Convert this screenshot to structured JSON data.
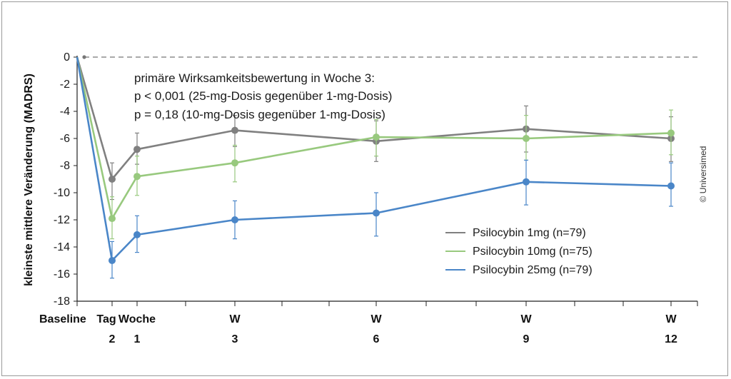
{
  "chart_data": {
    "type": "line",
    "title": "",
    "ylabel": "kleinste mittlere Veränderung (MADRS)",
    "ylim": [
      -18,
      0
    ],
    "yticks": [
      0,
      -2,
      -4,
      -6,
      -8,
      -10,
      -12,
      -14,
      -16,
      -18
    ],
    "x": [
      0,
      2,
      7,
      21,
      42,
      63,
      84
    ],
    "x_tick_labels": [
      {
        "x": 0,
        "line1": "Baseline",
        "line2": ""
      },
      {
        "x": 2,
        "line1": "Tag",
        "line2": "2"
      },
      {
        "x": 7,
        "line1": "Woche",
        "line2": "1"
      },
      {
        "x": 21,
        "line1": "W",
        "line2": "3"
      },
      {
        "x": 42,
        "line1": "W",
        "line2": "6"
      },
      {
        "x": 63,
        "line1": "W",
        "line2": "9"
      },
      {
        "x": 84,
        "line1": "W",
        "line2": "12"
      }
    ],
    "series": [
      {
        "name": "Psilocybin 1mg (n=79)",
        "color": "#808080",
        "values": [
          0,
          -9.0,
          -6.8,
          -5.4,
          -6.2,
          -5.3,
          -6.0
        ],
        "err_low": [
          0,
          -10.5,
          -7.9,
          -6.6,
          -7.7,
          -7.0,
          -7.7
        ],
        "err_high": [
          0,
          -7.8,
          -5.6,
          -4.3,
          -4.7,
          -3.6,
          -4.4
        ]
      },
      {
        "name": "Psilocybin 10mg (n=75)",
        "color": "#98c97e",
        "values": [
          0,
          -11.9,
          -8.8,
          -7.8,
          -5.9,
          -6.0,
          -5.6
        ],
        "err_low": [
          0,
          -13.4,
          -10.2,
          -9.2,
          -7.3,
          -7.6,
          -7.2
        ],
        "err_high": [
          0,
          -10.3,
          -7.3,
          -6.5,
          -4.6,
          -4.3,
          -3.9
        ]
      },
      {
        "name": "Psilocybin 25mg (n=79)",
        "color": "#4a86c8",
        "values": [
          0,
          -15.0,
          -13.1,
          -12.0,
          -11.5,
          -9.2,
          -9.5
        ],
        "err_low": [
          0,
          -16.3,
          -14.4,
          -13.4,
          -13.2,
          -10.9,
          -11.0
        ],
        "err_high": [
          0,
          -13.6,
          -11.7,
          -10.6,
          -10.0,
          -7.6,
          -7.8
        ]
      }
    ],
    "annotations": [
      "primäre Wirksamkeitsbewertung in Woche 3:",
      "p < 0,001 (25-mg-Dosis gegenüber 1-mg-Dosis)",
      "p = 0,18 (10-mg-Dosis gegenüber 1-mg-Dosis)"
    ],
    "legend_position": "bottom-right",
    "credit": "© Universimed"
  }
}
